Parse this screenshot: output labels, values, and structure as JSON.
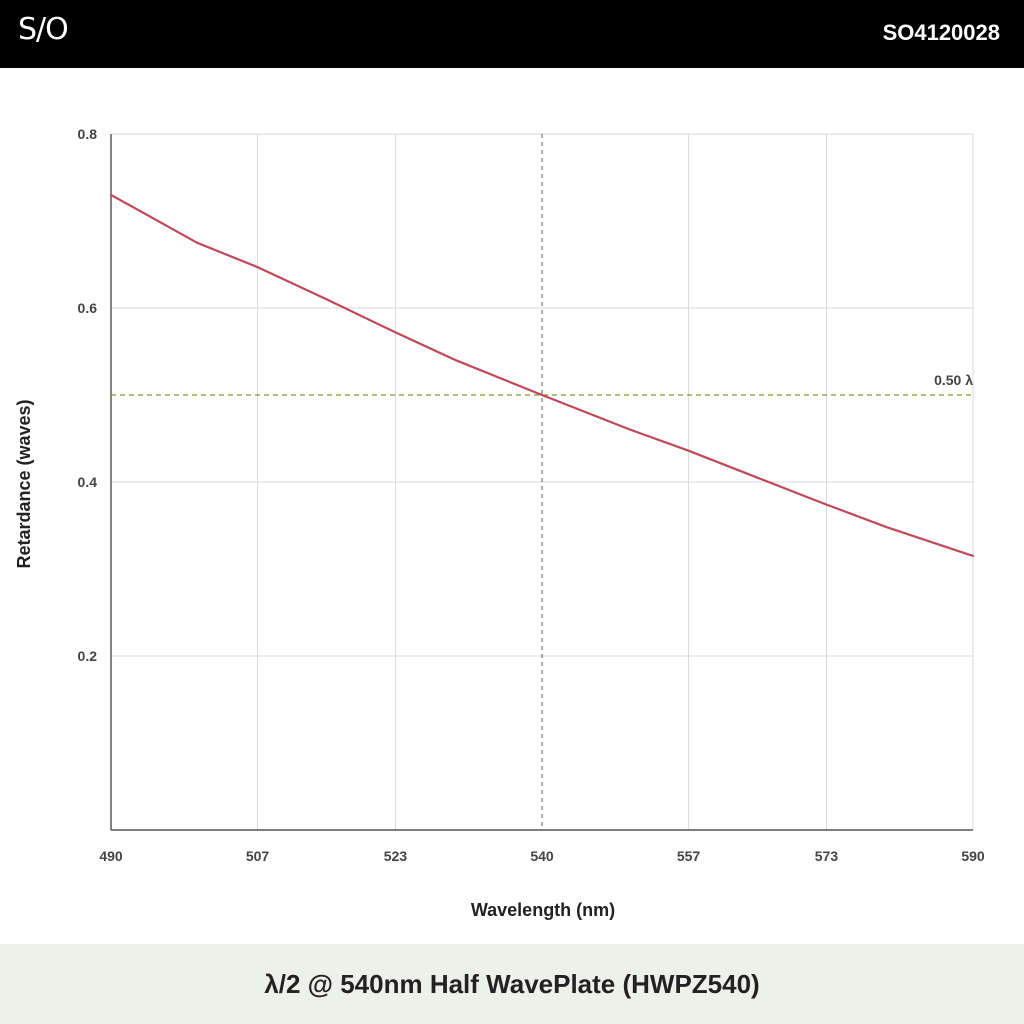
{
  "header": {
    "logo_text": "S/O",
    "product_code": "SO4120028"
  },
  "footer": {
    "title": "λ/2 @ 540nm Half WavePlate (HWPZ540)"
  },
  "colors": {
    "curve": "#c0485a",
    "reference_line": "#7a9a2a",
    "design_line": "#555555",
    "grid": "#d9d9d9"
  },
  "chart_data": {
    "type": "line",
    "xlabel": "Wavelength (nm)",
    "ylabel": "Retardance (waves)",
    "xlim": [
      490,
      590
    ],
    "ylim": [
      0,
      0.8
    ],
    "x_ticks": [
      "490",
      "507",
      "523",
      "540",
      "557",
      "573",
      "590"
    ],
    "x_tick_values": [
      490,
      507,
      523,
      540,
      557,
      573,
      590
    ],
    "y_ticks": [
      "0.2",
      "0.4",
      "0.6",
      "0.8"
    ],
    "y_tick_values": [
      0.2,
      0.4,
      0.6,
      0.8
    ],
    "grid": true,
    "series": [
      {
        "x": [
          490,
          500,
          507,
          515,
          523,
          530,
          540,
          550,
          557,
          565,
          573,
          580,
          590
        ],
        "values": [
          0.73,
          0.675,
          0.647,
          0.61,
          0.572,
          0.54,
          0.5,
          0.461,
          0.436,
          0.405,
          0.374,
          0.348,
          0.315
        ]
      }
    ],
    "reference_line": {
      "y": 0.5,
      "label": "0.50 λ"
    },
    "design_wavelength": 540
  }
}
